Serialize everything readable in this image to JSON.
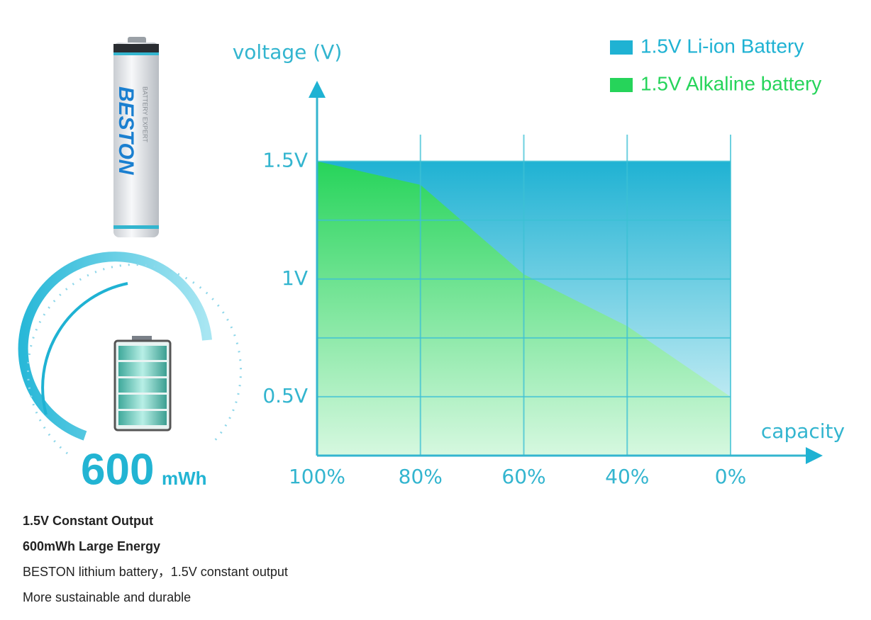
{
  "chart_data": {
    "type": "area",
    "y_label": "voltage (V)",
    "x_label": "capacity",
    "categories": [
      "100%",
      "80%",
      "60%",
      "40%",
      "0%"
    ],
    "series": [
      {
        "name": "1.5V Li-ion Battery",
        "color": "#1fb2d3",
        "values": [
          1.5,
          1.5,
          1.5,
          1.5,
          1.5
        ]
      },
      {
        "name": "1.5V Alkaline battery",
        "color": "#26d45a",
        "values": [
          1.5,
          1.4,
          1.02,
          0.8,
          0.5
        ]
      }
    ],
    "ylim": [
      0.25,
      1.8
    ],
    "yticks": [
      {
        "value": 0.5,
        "label": "0.5V"
      },
      {
        "value": 1,
        "label": "1V"
      },
      {
        "value": 1.5,
        "label": "1.5V"
      }
    ],
    "minor_yticks": [
      0.75,
      1.25
    ],
    "grid": true,
    "legend": "top-right"
  },
  "illustration": {
    "brand": "BESTON",
    "tagline": "BATTERY EXPERT",
    "energy": "600",
    "energy_unit": "mWh"
  },
  "description": {
    "lines": [
      "1.5V Constant Output",
      "600mWh Large Energy",
      "BESTON lithium battery，1.5V constant output",
      "More sustainable and durable"
    ]
  }
}
